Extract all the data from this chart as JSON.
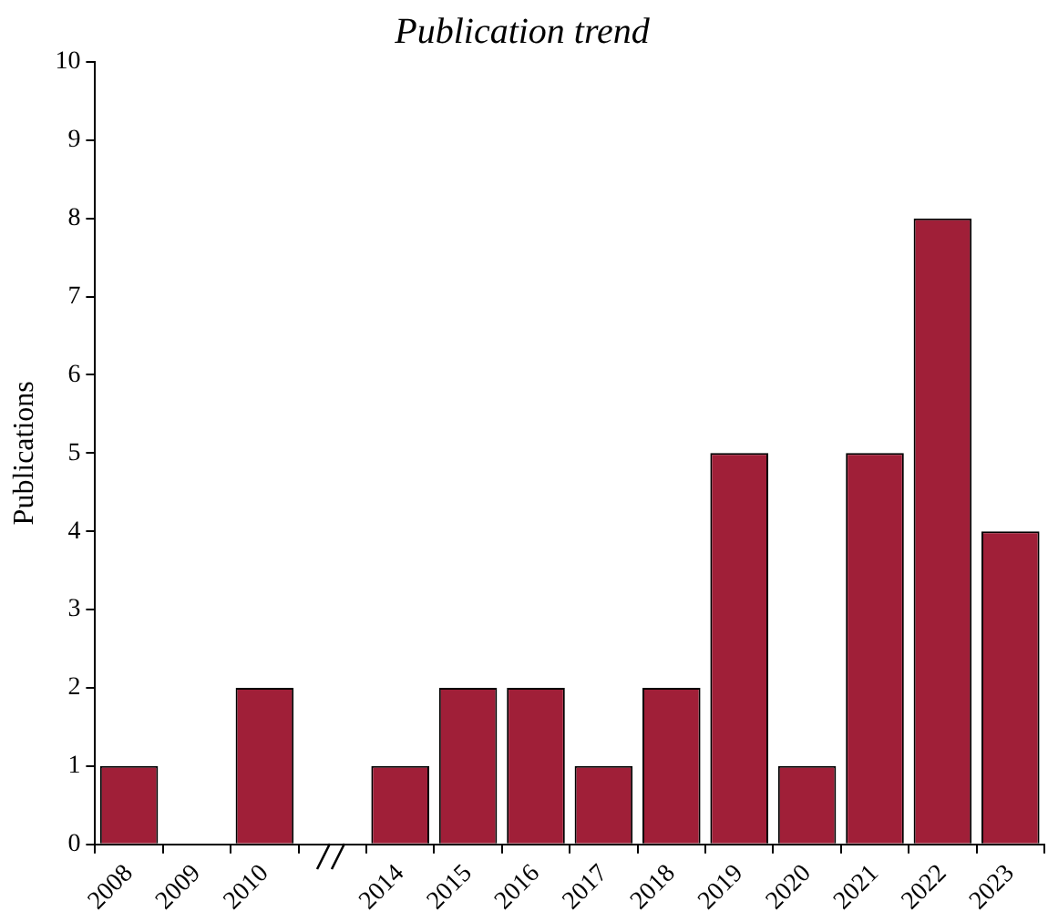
{
  "chart_data": {
    "type": "bar",
    "title": "Publication trend",
    "ylabel": "Publications",
    "categories": [
      "2008",
      "2009",
      "2010",
      null,
      "2014",
      "2015",
      "2016",
      "2017",
      "2018",
      "2019",
      "2020",
      "2021",
      "2022",
      "2023"
    ],
    "values": [
      1,
      0,
      2,
      null,
      1,
      2,
      2,
      1,
      2,
      5,
      1,
      5,
      8,
      4
    ],
    "color": "#a01f38",
    "ylim": [
      0,
      10
    ],
    "yticks": [
      0,
      1,
      2,
      3,
      4,
      5,
      6,
      7,
      8,
      9,
      10
    ],
    "grid": false,
    "legend": false
  }
}
